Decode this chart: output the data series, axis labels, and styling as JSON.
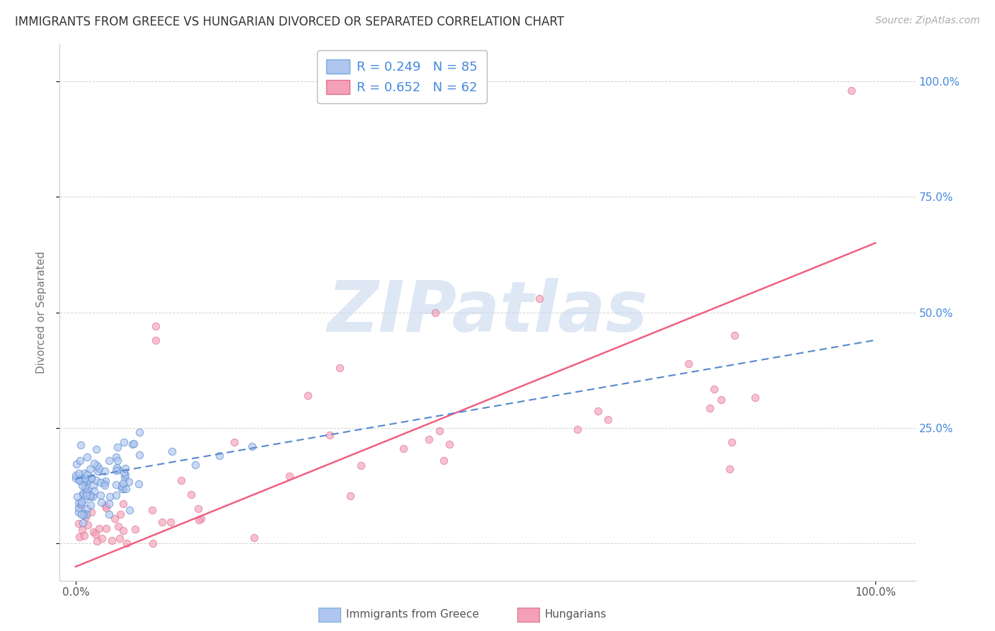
{
  "title": "IMMIGRANTS FROM GREECE VS HUNGARIAN DIVORCED OR SEPARATED CORRELATION CHART",
  "source": "Source: ZipAtlas.com",
  "ylabel": "Divorced or Separated",
  "background_color": "#ffffff",
  "grid_color": "#cccccc",
  "watermark": "ZIPatlas",
  "watermark_color": "#c8d8ee",
  "scatter_blue_color": "#aec6f0",
  "scatter_pink_color": "#f4a0b8",
  "line_blue_color": "#5588cc",
  "line_pink_color": "#f06080",
  "scatter_size_blue": 55,
  "scatter_size_pink": 55,
  "scatter_alpha": 0.65,
  "title_fontsize": 12,
  "axis_label_fontsize": 11,
  "tick_fontsize": 11,
  "legend_fontsize": 13,
  "R_blue": 0.249,
  "N_blue": 85,
  "R_pink": 0.652,
  "N_pink": 62,
  "xlim": [
    -0.02,
    1.05
  ],
  "ylim": [
    -0.08,
    1.08
  ],
  "pink_line_x0": 0.0,
  "pink_line_y0": -0.05,
  "pink_line_x1": 1.0,
  "pink_line_y1": 0.65,
  "blue_line_x0": 0.0,
  "blue_line_y0": 0.14,
  "blue_line_x1": 1.0,
  "blue_line_y1": 0.44,
  "seed": 7
}
